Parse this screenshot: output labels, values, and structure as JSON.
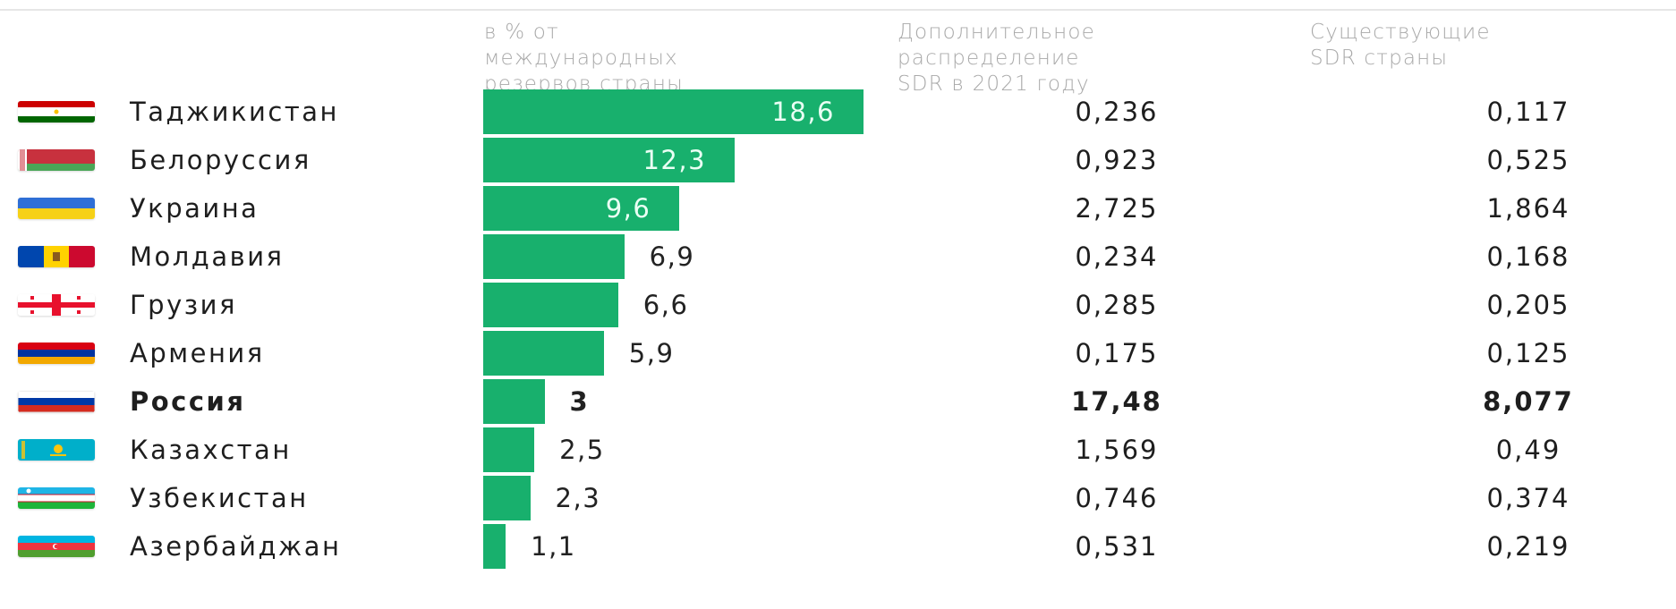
{
  "chart_data": {
    "type": "bar",
    "orientation": "horizontal",
    "title": "",
    "xlabel": "",
    "ylabel": "",
    "columns": [
      {
        "key": "pct",
        "lines": [
          "в % от",
          "международных",
          "резервов страны"
        ]
      },
      {
        "key": "add",
        "lines": [
          "Дополнительное",
          "распределение",
          "SDR в 2021 году"
        ]
      },
      {
        "key": "exist",
        "lines": [
          "Существующие",
          "SDR страны"
        ]
      }
    ],
    "xlim": [
      0,
      18.6
    ],
    "grid": false,
    "bar_color": "#18b06d",
    "rows": [
      {
        "country": "Таджикистан",
        "flag": "tajikistan-flag-icon",
        "pct": 18.6,
        "pct_label": "18,6",
        "add": "0,236",
        "exist": "0,117",
        "bold": false
      },
      {
        "country": "Белоруссия",
        "flag": "belarus-flag-icon",
        "pct": 12.3,
        "pct_label": "12,3",
        "add": "0,923",
        "exist": "0,525",
        "bold": false
      },
      {
        "country": "Украина",
        "flag": "ukraine-flag-icon",
        "pct": 9.6,
        "pct_label": "9,6",
        "add": "2,725",
        "exist": "1,864",
        "bold": false
      },
      {
        "country": "Молдавия",
        "flag": "moldova-flag-icon",
        "pct": 6.9,
        "pct_label": "6,9",
        "add": "0,234",
        "exist": "0,168",
        "bold": false
      },
      {
        "country": "Грузия",
        "flag": "georgia-flag-icon",
        "pct": 6.6,
        "pct_label": "6,6",
        "add": "0,285",
        "exist": "0,205",
        "bold": false
      },
      {
        "country": "Армения",
        "flag": "armenia-flag-icon",
        "pct": 5.9,
        "pct_label": "5,9",
        "add": "0,175",
        "exist": "0,125",
        "bold": false
      },
      {
        "country": "Россия",
        "flag": "russia-flag-icon",
        "pct": 3,
        "pct_label": "3",
        "add": "17,48",
        "exist": "8,077",
        "bold": true
      },
      {
        "country": "Казахстан",
        "flag": "kazakhstan-flag-icon",
        "pct": 2.5,
        "pct_label": "2,5",
        "add": "1,569",
        "exist": "0,49",
        "bold": false
      },
      {
        "country": "Узбекистан",
        "flag": "uzbekistan-flag-icon",
        "pct": 2.3,
        "pct_label": "2,3",
        "add": "0,746",
        "exist": "0,374",
        "bold": false
      },
      {
        "country": "Азербайджан",
        "flag": "azerbaijan-flag-icon",
        "pct": 1.1,
        "pct_label": "1,1",
        "add": "0,531",
        "exist": "0,219",
        "bold": false
      }
    ]
  }
}
